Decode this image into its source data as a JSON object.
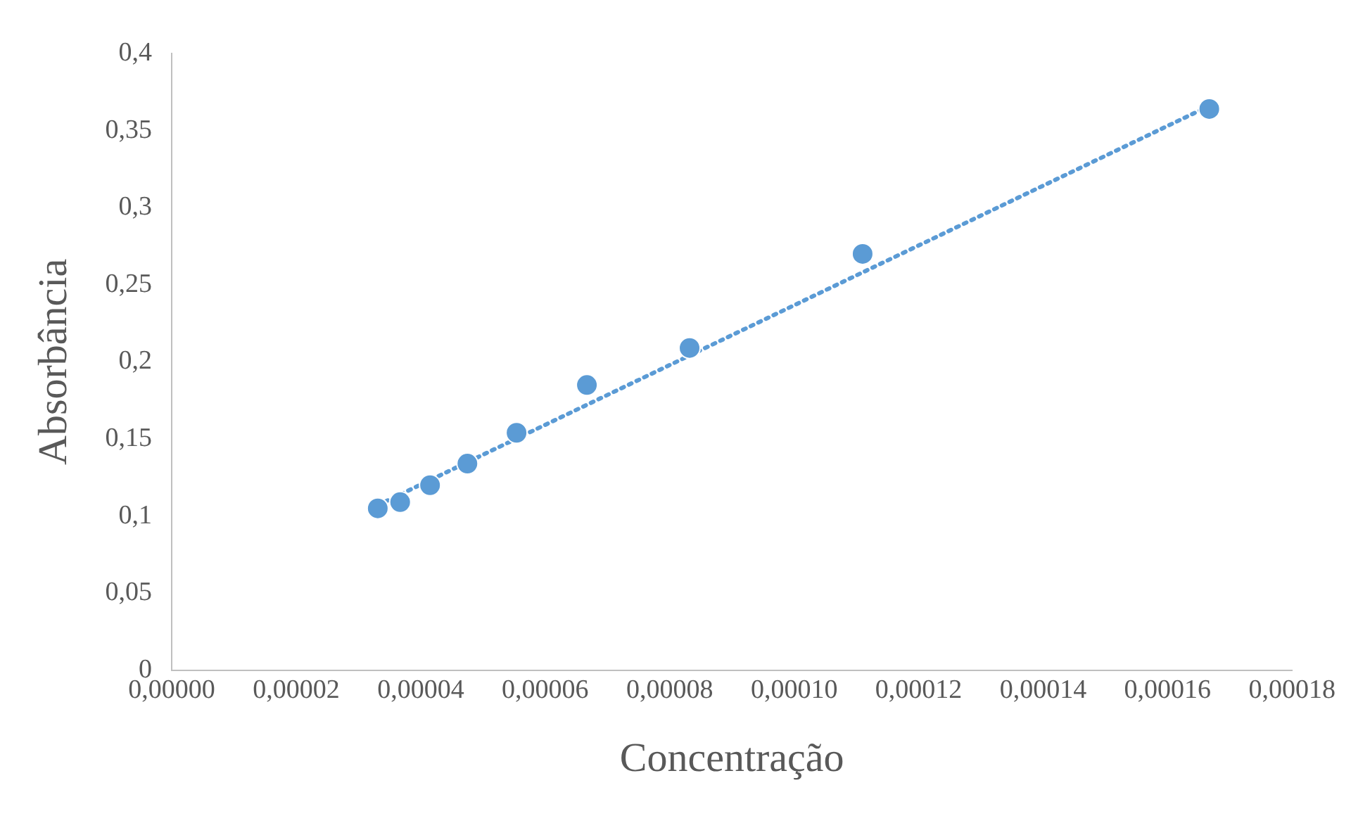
{
  "chart_data": {
    "type": "scatter",
    "xlabel": "Concentração",
    "ylabel": "Absorbância",
    "xlim": [
      0,
      0.00018
    ],
    "xticks": [
      {
        "value": 0,
        "label": "0,00000"
      },
      {
        "value": 2e-05,
        "label": "0,00002"
      },
      {
        "value": 4e-05,
        "label": "0,00004"
      },
      {
        "value": 6e-05,
        "label": "0,00006"
      },
      {
        "value": 8e-05,
        "label": "0,00008"
      },
      {
        "value": 0.0001,
        "label": "0,00010"
      },
      {
        "value": 0.00012,
        "label": "0,00012"
      },
      {
        "value": 0.00014,
        "label": "0,00014"
      },
      {
        "value": 0.00016,
        "label": "0,00016"
      },
      {
        "value": 0.00018,
        "label": "0,00018"
      }
    ],
    "ylim": [
      0,
      0.4
    ],
    "yticks": [
      0,
      {
        "value": 0.05,
        "label": "0,05"
      },
      {
        "value": 0.1,
        "label": "0,1"
      },
      {
        "value": 0.15,
        "label": "0,15"
      },
      {
        "value": 0.2,
        "label": "0,2"
      },
      {
        "value": 0.25,
        "label": "0,25"
      },
      {
        "value": 0.3,
        "label": "0,3"
      },
      {
        "value": 0.35,
        "label": "0,35"
      },
      {
        "value": 0.4,
        "label": "0,4"
      }
    ],
    "grid": false,
    "legend": false,
    "series": [
      {
        "color": "#5b9bd5",
        "marker": "circle",
        "x": [
          3.31e-05,
          3.67e-05,
          4.15e-05,
          4.75e-05,
          5.54e-05,
          6.67e-05,
          8.32e-05,
          0.000111,
          0.0001667
        ],
        "values": [
          0.105,
          0.109,
          0.12,
          0.134,
          0.154,
          0.185,
          0.209,
          0.27,
          0.364
        ]
      },
      {
        "type": "line",
        "color": "#5b9bd5",
        "marker": "none",
        "line_style": "dotted",
        "x": [
          3.31e-05,
          0.0001667
        ],
        "values": [
          0.107,
          0.366
        ]
      }
    ]
  }
}
